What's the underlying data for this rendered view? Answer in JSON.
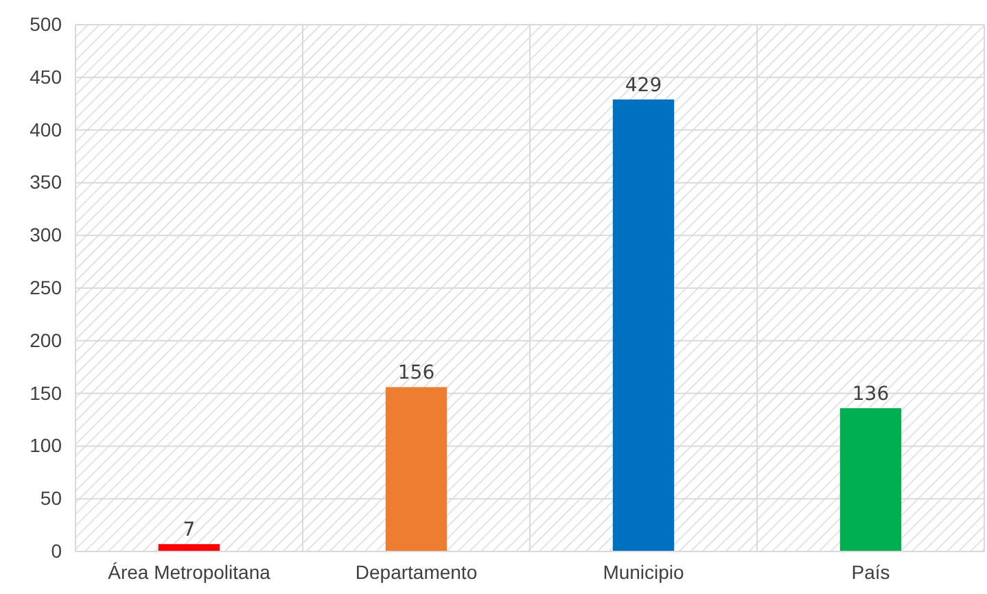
{
  "chart_data": {
    "type": "bar",
    "categories": [
      "Área Metropolitana",
      "Departamento",
      "Municipio",
      "País"
    ],
    "values": [
      7,
      156,
      429,
      136
    ],
    "colors": [
      "#ff0000",
      "#ed7d31",
      "#0070c0",
      "#00b050"
    ],
    "ylim": [
      0,
      500
    ],
    "yticks": [
      0,
      50,
      100,
      150,
      200,
      250,
      300,
      350,
      400,
      450,
      500
    ],
    "grid": true,
    "data_labels": true
  }
}
